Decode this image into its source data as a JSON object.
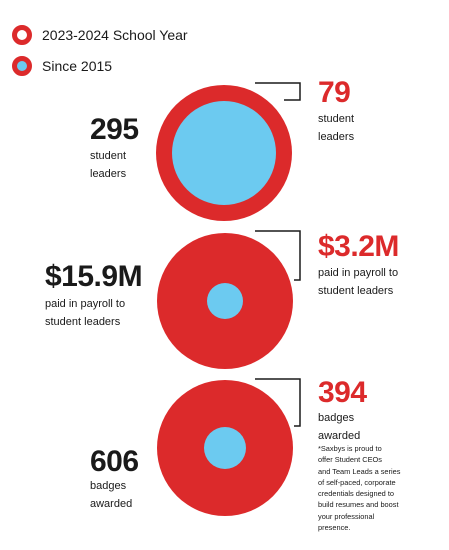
{
  "colors": {
    "red": "#dc2a2b",
    "blue": "#6ccaf0",
    "text": "#1a1a1a"
  },
  "legend": [
    {
      "label": "2023-2024 School Year",
      "marker": "red-ring"
    },
    {
      "label": "Since 2015",
      "marker": "red-ring-blue-fill"
    }
  ],
  "chart_data": {
    "type": "nested-circles",
    "series": [
      {
        "name": "2023-2024 School Year",
        "color": "#6ccaf0"
      },
      {
        "name": "Since 2015",
        "color": "#dc2a2b"
      }
    ],
    "metrics": [
      {
        "since_2015_value": "295",
        "since_2015_label": [
          "student",
          "leaders"
        ],
        "year_value": "79",
        "year_label": [
          "student",
          "leaders"
        ],
        "since_2015": 295,
        "year": 79
      },
      {
        "since_2015_value": "$15.9M",
        "since_2015_label": [
          "paid in payroll to",
          "student leaders"
        ],
        "year_value": "$3.2M",
        "year_label": [
          "paid in payroll to",
          "student leaders"
        ],
        "since_2015": 15.9,
        "year": 3.2
      },
      {
        "since_2015_value": "606",
        "since_2015_label": [
          "badges",
          "awarded"
        ],
        "year_value": "394",
        "year_label": [
          "badges",
          "awarded"
        ],
        "since_2015": 606,
        "year": 394
      }
    ]
  },
  "footnote": [
    "*Saxbys is proud to",
    "offer Student CEOs",
    "and Team Leads a series",
    "of self-paced, corporate",
    "credentials designed to",
    "build resumes and boost",
    "your professional",
    "presence."
  ]
}
